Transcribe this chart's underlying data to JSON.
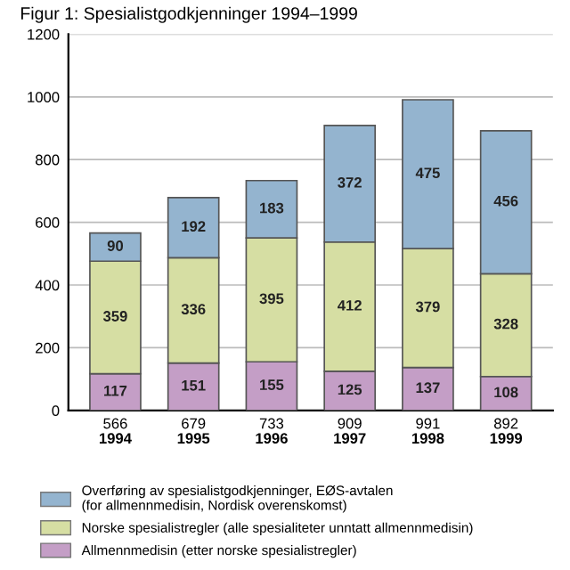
{
  "chart_data": {
    "type": "bar",
    "title": "Figur 1: Spesialistgodkjenninger 1994–1999",
    "categories": [
      "1994",
      "1995",
      "1996",
      "1997",
      "1998",
      "1999"
    ],
    "stacked": true,
    "data_labels": true,
    "totals": [
      "566",
      "679",
      "733",
      "909",
      "991",
      "892"
    ],
    "series": [
      {
        "name": "Allmennmedisin (etter norske spesialistregler)",
        "color": "#c49ec6",
        "values": [
          117,
          151,
          155,
          125,
          137,
          108
        ]
      },
      {
        "name": "Norske spesialistregler (alle spesialiteter unntatt allmennmedisin)",
        "color": "#d6dea3",
        "values": [
          359,
          336,
          395,
          412,
          379,
          328
        ]
      },
      {
        "name": "Overføring av spesialistgodkjenninger, EØS-avtalen\n(for allmennmedisin, Nordisk overenskomst)",
        "color": "#94b4cf",
        "values": [
          90,
          192,
          183,
          372,
          475,
          456
        ]
      }
    ],
    "ylim": [
      0,
      1200
    ],
    "yticks": [
      0,
      200,
      400,
      600,
      800,
      1000,
      1200
    ],
    "grid": "y",
    "legend": "bottom"
  }
}
